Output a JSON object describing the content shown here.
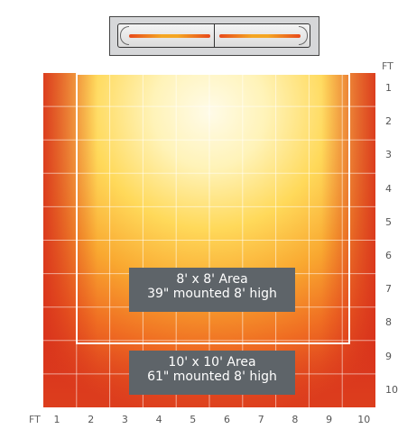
{
  "heater": {
    "icon": "heater-icon"
  },
  "heatmap": {
    "rows": 10,
    "cols": 10,
    "unit_label_x": "FT",
    "unit_label_y": "FT",
    "x_ticks": [
      "1",
      "2",
      "3",
      "4",
      "5",
      "6",
      "7",
      "8",
      "9",
      "10"
    ],
    "y_ticks": [
      "1",
      "2",
      "3",
      "4",
      "5",
      "6",
      "7",
      "8",
      "9",
      "10"
    ]
  },
  "areas": {
    "inner": {
      "line1": "8' x 8' Area",
      "line2": "39\" mounted 8' high"
    },
    "outer": {
      "line1": "10' x 10' Area",
      "line2": "61\" mounted 8' high"
    }
  }
}
